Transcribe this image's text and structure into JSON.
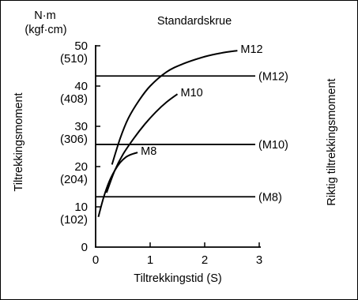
{
  "chart_data": {
    "type": "line",
    "title": "Standardskrue",
    "unit_top": "N·m",
    "unit_sub": "(kgf·cm)",
    "xlabel": "Tiltrekkingstid (S)",
    "ylabel": "Tiltrekkingsmoment",
    "ylabel_right": "Riktig tiltrekkingsmoment",
    "xlim": [
      0,
      3
    ],
    "ylim": [
      0,
      50
    ],
    "xticks": [
      {
        "value": 0,
        "label": "0"
      },
      {
        "value": 1,
        "label": "1"
      },
      {
        "value": 2,
        "label": "2"
      },
      {
        "value": 3,
        "label": "3"
      }
    ],
    "yticks": [
      {
        "value": 0,
        "label": "0"
      },
      {
        "value": 10,
        "label": "10"
      },
      {
        "value": 20,
        "label": "20"
      },
      {
        "value": 30,
        "label": "30"
      },
      {
        "value": 40,
        "label": "40"
      },
      {
        "value": 50,
        "label": "50"
      }
    ],
    "ysecondary": [
      {
        "value": 10,
        "label": "(102)"
      },
      {
        "value": 20,
        "label": "(204)"
      },
      {
        "value": 30,
        "label": "(306)"
      },
      {
        "value": 40,
        "label": "(408)"
      },
      {
        "value": 50,
        "label": "(510)"
      }
    ],
    "series": [
      {
        "name": "M12",
        "x": [
          0.3,
          0.45,
          0.6,
          0.8,
          1.0,
          1.3,
          1.6,
          2.0,
          2.3,
          2.6
        ],
        "y": [
          20.5,
          27.0,
          32.0,
          36.5,
          40.0,
          43.5,
          45.5,
          47.3,
          48.2,
          48.8
        ]
      },
      {
        "name": "M10",
        "x": [
          0.2,
          0.35,
          0.5,
          0.7,
          0.9,
          1.1,
          1.3,
          1.5
        ],
        "y": [
          13.5,
          19.0,
          23.0,
          27.0,
          30.5,
          33.5,
          36.0,
          38.0
        ]
      },
      {
        "name": "M8",
        "x": [
          0.05,
          0.15,
          0.25,
          0.35,
          0.45,
          0.55,
          0.65,
          0.77
        ],
        "y": [
          7.5,
          12.5,
          16.3,
          19.0,
          21.0,
          22.3,
          23.0,
          23.5
        ]
      }
    ],
    "reference_lines": [
      {
        "name": "(M12)",
        "value": 42.5
      },
      {
        "name": "(M10)",
        "value": 25.5
      },
      {
        "name": "(M8)",
        "value": 12.5
      }
    ],
    "grid": false,
    "legend": "none"
  }
}
